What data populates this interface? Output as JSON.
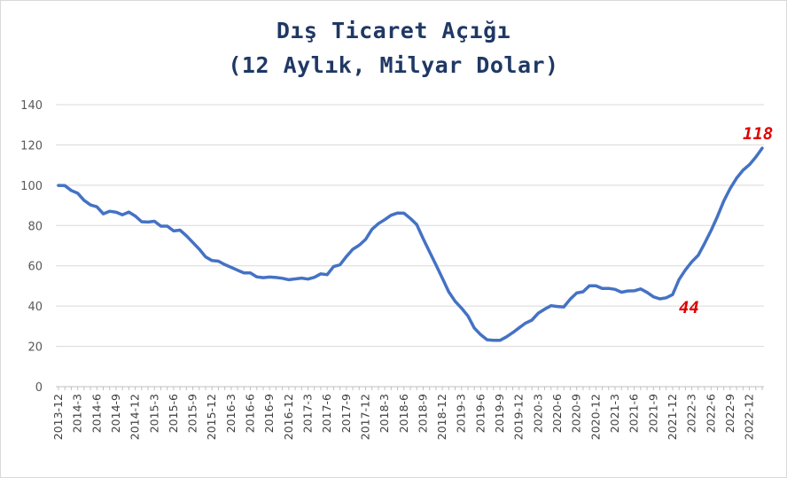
{
  "chart_data": {
    "type": "line",
    "title": "Dış Ticaret Açığı",
    "subtitle": "(12 Aylık, Milyar Dolar)",
    "xlabel": "",
    "ylabel": "",
    "ylim": [
      0,
      140
    ],
    "yticks": [
      0,
      20,
      40,
      60,
      80,
      100,
      120,
      140
    ],
    "grid": true,
    "x_tick_labels": [
      "2013-12",
      "2014-3",
      "2014-6",
      "2014-9",
      "2014-12",
      "2015-3",
      "2015-6",
      "2015-9",
      "2015-12",
      "2016-3",
      "2016-6",
      "2016-9",
      "2016-12",
      "2017-3",
      "2017-6",
      "2017-9",
      "2017-12",
      "2018-3",
      "2018-6",
      "2018-9",
      "2018-12",
      "2019-3",
      "2019-6",
      "2019-9",
      "2019-12",
      "2020-3",
      "2020-6",
      "2020-9",
      "2020-12",
      "2021-3",
      "2021-6",
      "2021-9",
      "2021-12",
      "2022-3",
      "2022-6",
      "2022-9",
      "2022-12"
    ],
    "series": [
      {
        "color": "#4472c4",
        "x": [
          "2013-12",
          "2014-1",
          "2014-2",
          "2014-3",
          "2014-4",
          "2014-5",
          "2014-6",
          "2014-7",
          "2014-8",
          "2014-9",
          "2014-10",
          "2014-11",
          "2014-12",
          "2015-1",
          "2015-2",
          "2015-3",
          "2015-4",
          "2015-5",
          "2015-6",
          "2015-7",
          "2015-8",
          "2015-9",
          "2015-10",
          "2015-11",
          "2015-12",
          "2016-1",
          "2016-2",
          "2016-3",
          "2016-4",
          "2016-5",
          "2016-6",
          "2016-7",
          "2016-8",
          "2016-9",
          "2016-10",
          "2016-11",
          "2016-12",
          "2017-1",
          "2017-2",
          "2017-3",
          "2017-4",
          "2017-5",
          "2017-6",
          "2017-7",
          "2017-8",
          "2017-9",
          "2017-10",
          "2017-11",
          "2017-12",
          "2018-1",
          "2018-2",
          "2018-3",
          "2018-4",
          "2018-5",
          "2018-6",
          "2018-7",
          "2018-8",
          "2018-9",
          "2018-10",
          "2018-11",
          "2018-12",
          "2019-1",
          "2019-2",
          "2019-3",
          "2019-4",
          "2019-5",
          "2019-6",
          "2019-7",
          "2019-8",
          "2019-9",
          "2019-10",
          "2019-11",
          "2019-12",
          "2020-1",
          "2020-2",
          "2020-3",
          "2020-4",
          "2020-5",
          "2020-6",
          "2020-7",
          "2020-8",
          "2020-9",
          "2020-10",
          "2020-11",
          "2020-12",
          "2021-1",
          "2021-2",
          "2021-3",
          "2021-4",
          "2021-5",
          "2021-6",
          "2021-7",
          "2021-8",
          "2021-9",
          "2021-10",
          "2021-11",
          "2021-12",
          "2022-1",
          "2022-2",
          "2022-3",
          "2022-4",
          "2022-5",
          "2022-6",
          "2022-7",
          "2022-8",
          "2022-9",
          "2022-10",
          "2022-11",
          "2022-12",
          "2023-1",
          "2023-2"
        ],
        "values": [
          99.9,
          99.8,
          97.4,
          96.0,
          92.5,
          90.2,
          89.3,
          85.8,
          87.1,
          86.6,
          85.3,
          86.7,
          84.7,
          81.9,
          81.7,
          82.1,
          79.7,
          79.7,
          77.3,
          77.7,
          74.9,
          71.6,
          68.3,
          64.4,
          62.6,
          62.3,
          60.6,
          59.2,
          57.8,
          56.5,
          56.5,
          54.5,
          54.1,
          54.4,
          54.2,
          53.8,
          53.1,
          53.5,
          53.9,
          53.4,
          54.3,
          56.0,
          55.6,
          59.6,
          60.5,
          64.6,
          68.2,
          70.2,
          73.1,
          78.1,
          80.9,
          82.9,
          85.1,
          86.2,
          86.1,
          83.5,
          80.5,
          73.5,
          66.9,
          60.5,
          53.9,
          47.1,
          42.4,
          39.0,
          35.1,
          29.1,
          25.8,
          23.3,
          23.0,
          23.0,
          24.7,
          26.8,
          29.2,
          31.5,
          33.0,
          36.5,
          38.5,
          40.2,
          39.8,
          39.6,
          43.5,
          46.5,
          47.1,
          50.1,
          50.1,
          48.8,
          48.8,
          48.3,
          46.9,
          47.5,
          47.6,
          48.5,
          46.8,
          44.6,
          43.6,
          44.1,
          45.7,
          53.2,
          58.0,
          62.0,
          65.2,
          71.1,
          77.5,
          84.5,
          92.2,
          98.4,
          103.5,
          107.4,
          110.2,
          114.0,
          118.4
        ]
      }
    ],
    "annotations": [
      "118",
      "44"
    ]
  }
}
